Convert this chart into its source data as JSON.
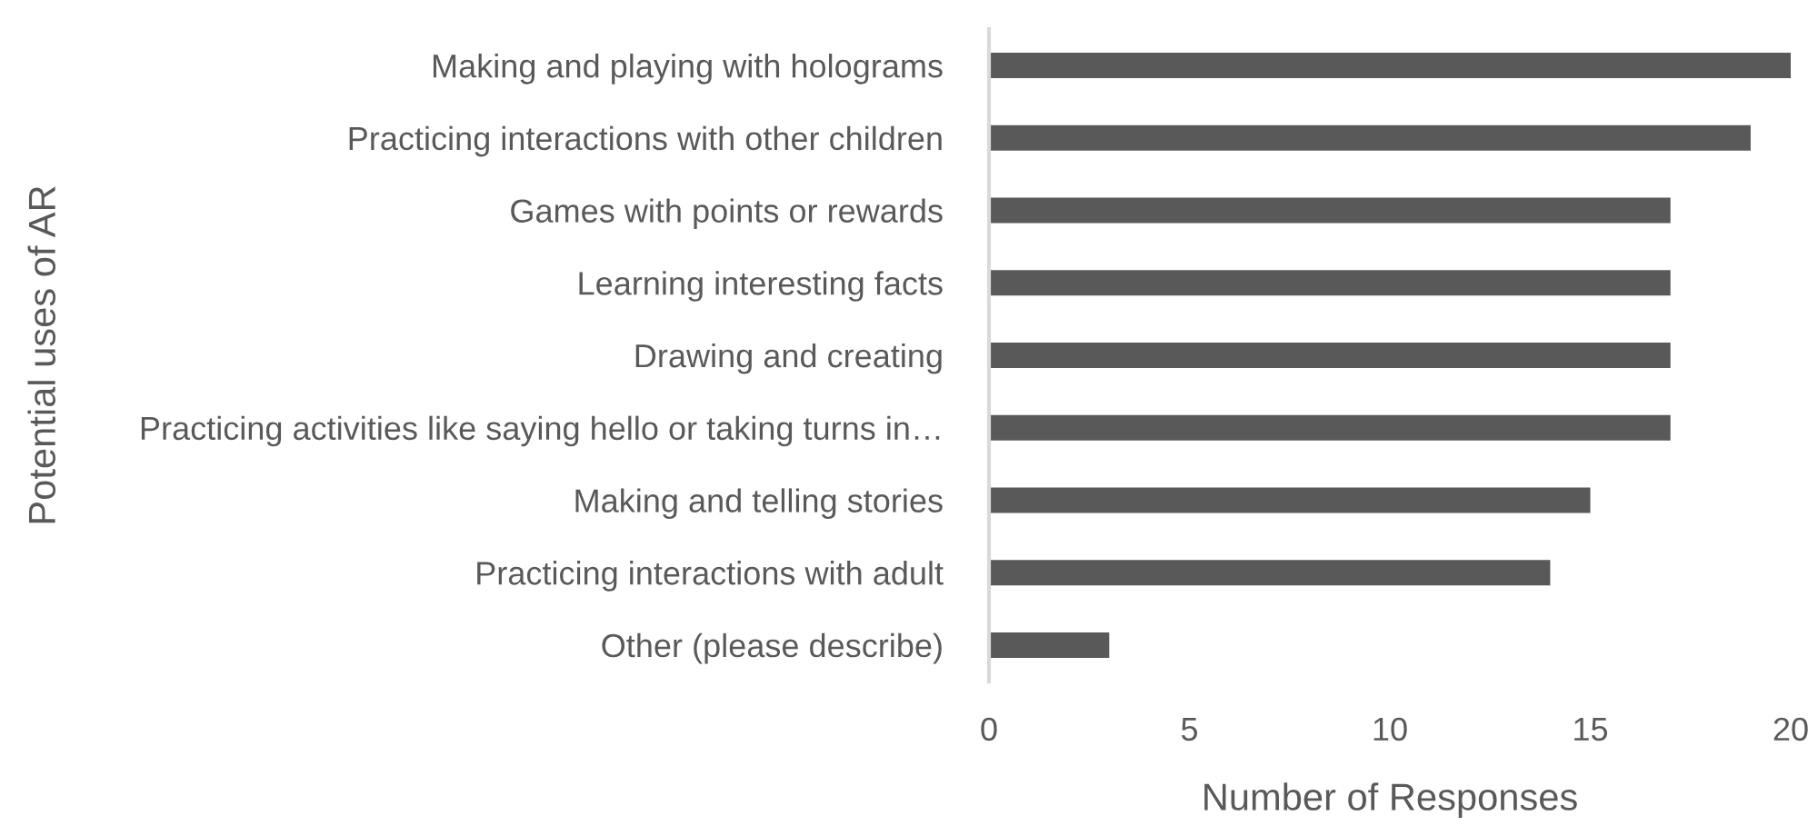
{
  "chart_data": {
    "type": "bar",
    "orientation": "horizontal",
    "xlabel": "Number of Responses",
    "ylabel": "Potential uses of AR",
    "categories": [
      "Making and playing with holograms",
      "Practicing interactions with other children",
      "Games with points or rewards",
      "Learning interesting facts",
      "Drawing and creating",
      "Practicing activities like saying hello or taking turns in…",
      "Making and telling stories",
      "Practicing interactions with adult",
      "Other (please describe)"
    ],
    "values": [
      20,
      19,
      17,
      17,
      17,
      17,
      15,
      14,
      3
    ],
    "color": "#595959",
    "xlim": [
      0,
      20
    ],
    "xticks": [
      0,
      5,
      10,
      15,
      20
    ],
    "grid": false,
    "legend": false
  }
}
